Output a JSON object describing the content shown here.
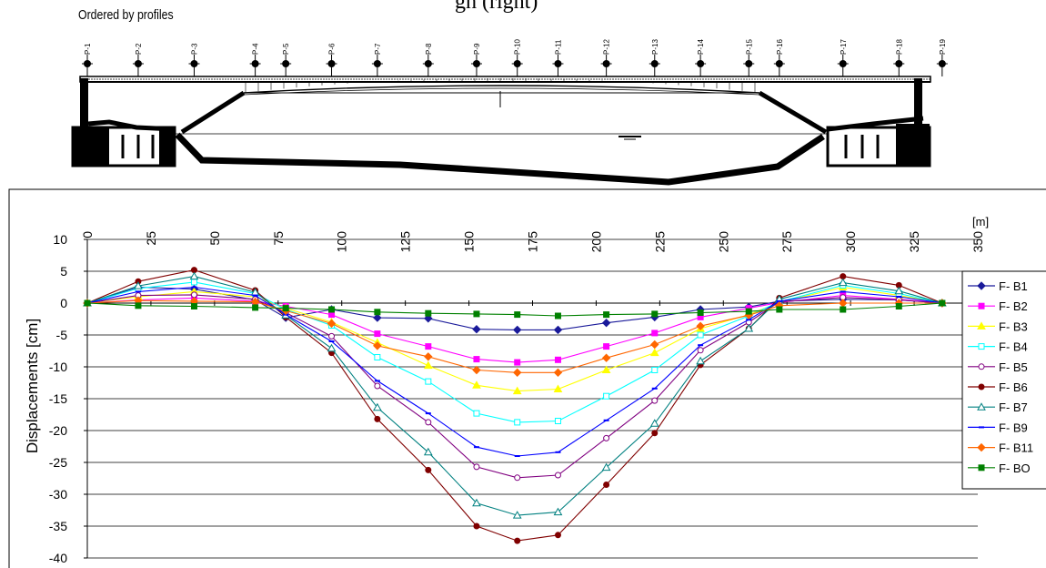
{
  "heading_fragment": "gh (right)",
  "subtitle": "Ordered by profiles",
  "profiles": [
    "P-1",
    "P-2",
    "P-3",
    "P-4",
    "P-5",
    "P-6",
    "P-7",
    "P-8",
    "P-9",
    "P-10",
    "P-11",
    "P-12",
    "P-13",
    "P-14",
    "P-15",
    "P-16",
    "P-17",
    "P-18",
    "P-19"
  ],
  "profile_stations": [
    0,
    20,
    42,
    66,
    78,
    96,
    114,
    134,
    153,
    169,
    185,
    204,
    223,
    241,
    260,
    272,
    297,
    319,
    336
  ],
  "chart_data": {
    "type": "line",
    "ylabel": "Displacements [cm]",
    "x_unit_label": "[m]",
    "xlim": [
      0,
      350
    ],
    "xticks": [
      "0",
      "25",
      "50",
      "75",
      "100",
      "125",
      "150",
      "175",
      "200",
      "225",
      "250",
      "275",
      "300",
      "325",
      "350"
    ],
    "ylim": [
      -40,
      10
    ],
    "yticks": [
      "10",
      "5",
      "0",
      "-5",
      "-10",
      "-15",
      "-20",
      "-25",
      "-30",
      "-35",
      "-40"
    ],
    "grid": "horizontal",
    "legend_position": "right",
    "x": [
      0,
      20,
      42,
      66,
      78,
      96,
      114,
      134,
      153,
      169,
      185,
      204,
      223,
      241,
      260,
      272,
      297,
      319,
      336
    ],
    "series": [
      {
        "name": "F- B1",
        "color": "#1a1a9a",
        "marker": "diamond",
        "values": [
          0,
          2.5,
          2.2,
          0.5,
          -2.3,
          -1.0,
          -2.3,
          -2.4,
          -4.1,
          -4.2,
          -4.2,
          -3.1,
          -2.2,
          -1.0,
          -0.6,
          0.3,
          0.6,
          0.5,
          0
        ]
      },
      {
        "name": "F- B2",
        "color": "#ff00ff",
        "marker": "square",
        "values": [
          0,
          0.5,
          0.8,
          0.3,
          -0.5,
          -1.8,
          -4.8,
          -6.8,
          -8.8,
          -9.3,
          -8.9,
          -6.8,
          -4.7,
          -2.2,
          -0.8,
          0.1,
          1.2,
          0.6,
          0
        ]
      },
      {
        "name": "F- B3",
        "color": "#ffff00",
        "marker": "triangle",
        "values": [
          0,
          1.0,
          1.8,
          1.0,
          -0.8,
          -3.0,
          -6.2,
          -9.8,
          -12.9,
          -13.8,
          -13.5,
          -10.5,
          -7.8,
          -4.0,
          -1.8,
          0.1,
          2.5,
          1.2,
          0
        ]
      },
      {
        "name": "F- B4",
        "color": "#00ffff",
        "marker": "square-open",
        "values": [
          0,
          2.3,
          3.3,
          1.5,
          -1.0,
          -3.5,
          -8.5,
          -12.3,
          -17.3,
          -18.7,
          -18.5,
          -14.6,
          -10.5,
          -5.0,
          -2.0,
          0.2,
          2.8,
          1.5,
          0
        ]
      },
      {
        "name": "F- B5",
        "color": "#800080",
        "marker": "circle-open",
        "values": [
          0,
          1.2,
          1.3,
          0.6,
          -1.5,
          -5.2,
          -13.0,
          -18.7,
          -25.7,
          -27.4,
          -27.0,
          -21.2,
          -15.3,
          -7.4,
          -3.0,
          0.2,
          0.9,
          0.5,
          0
        ]
      },
      {
        "name": "F- B6",
        "color": "#800000",
        "marker": "circle",
        "values": [
          0,
          3.4,
          5.2,
          2.0,
          -2.2,
          -7.8,
          -18.2,
          -26.2,
          -35.0,
          -37.3,
          -36.4,
          -28.5,
          -20.4,
          -9.7,
          -4.0,
          0.8,
          4.2,
          2.8,
          0
        ]
      },
      {
        "name": "F- B7",
        "color": "#008080",
        "marker": "triangle-open",
        "values": [
          0,
          2.7,
          4.2,
          1.7,
          -1.9,
          -7.1,
          -16.4,
          -23.4,
          -31.4,
          -33.3,
          -32.8,
          -25.8,
          -18.9,
          -9.1,
          -4.0,
          0.6,
          3.2,
          1.9,
          0
        ]
      },
      {
        "name": "F- B9",
        "color": "#0000ff",
        "marker": "dash",
        "values": [
          0,
          1.8,
          2.5,
          1.2,
          -1.8,
          -6.0,
          -12.2,
          -17.3,
          -22.6,
          -24.0,
          -23.4,
          -18.4,
          -13.4,
          -6.6,
          -2.6,
          0.3,
          1.8,
          1.0,
          0
        ]
      },
      {
        "name": "F- B11",
        "color": "#ff6600",
        "marker": "diamond",
        "values": [
          0,
          0.4,
          0.3,
          0.2,
          -1.2,
          -3.2,
          -6.7,
          -8.4,
          -10.5,
          -10.9,
          -10.9,
          -8.6,
          -6.5,
          -3.6,
          -1.9,
          -0.4,
          0.0,
          0.0,
          0
        ]
      },
      {
        "name": "F- BO",
        "color": "#008000",
        "marker": "square",
        "values": [
          0,
          -0.4,
          -0.5,
          -0.7,
          -0.8,
          -1.0,
          -1.4,
          -1.6,
          -1.7,
          -1.8,
          -2.0,
          -1.8,
          -1.7,
          -1.5,
          -1.3,
          -1.0,
          -1.0,
          -0.5,
          0
        ]
      }
    ]
  }
}
